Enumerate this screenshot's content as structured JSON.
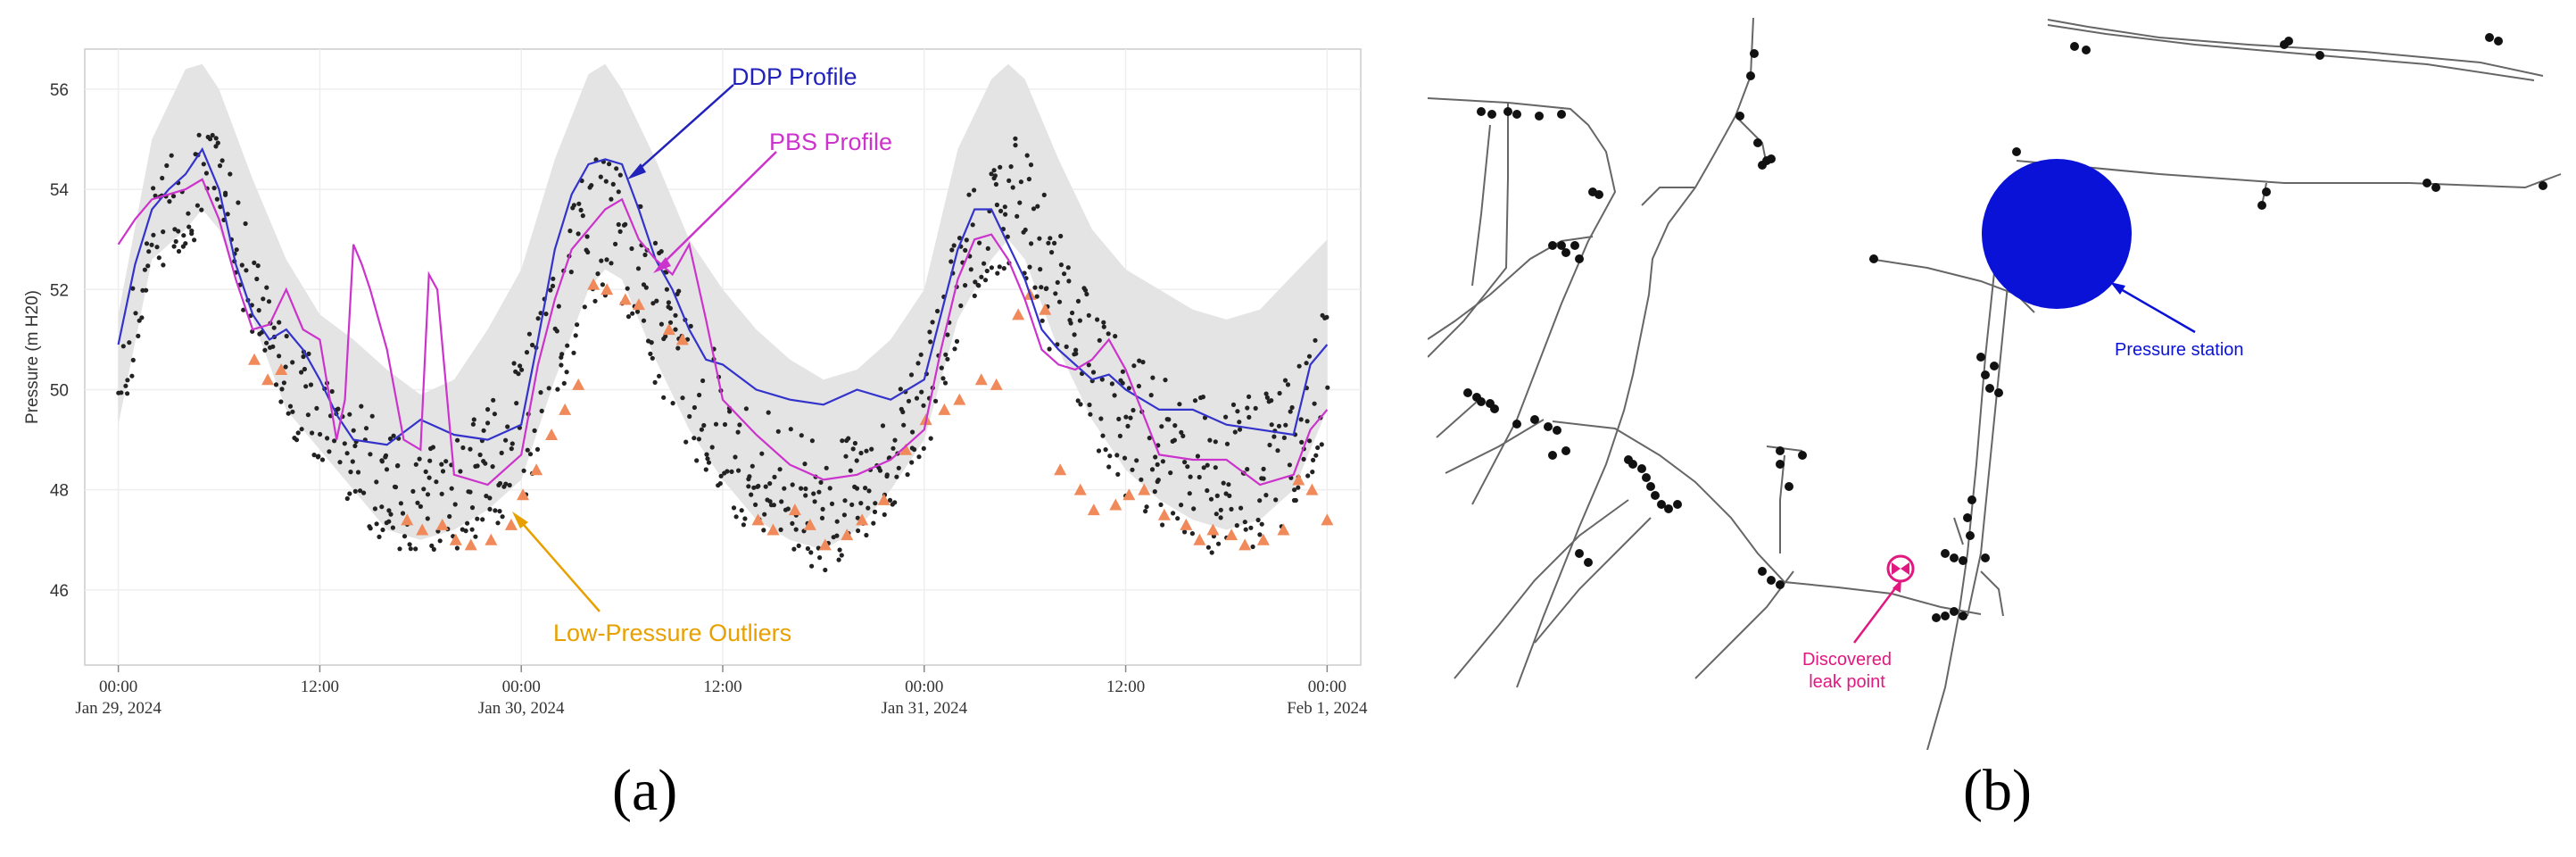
{
  "panel_labels": {
    "a": "(a)",
    "b": "(b)"
  },
  "chart_data": {
    "type": "line",
    "title": "",
    "ylabel": "Pressure (m H20)",
    "ylim": [
      44.5,
      56.8
    ],
    "yticks": [
      46,
      48,
      50,
      52,
      54,
      56
    ],
    "xlim": [
      -2,
      74
    ],
    "x_ticks": [
      {
        "hour": 0,
        "time": "00:00",
        "date": "Jan 29, 2024"
      },
      {
        "hour": 12,
        "time": "12:00",
        "date": ""
      },
      {
        "hour": 24,
        "time": "00:00",
        "date": "Jan 30, 2024"
      },
      {
        "hour": 36,
        "time": "12:00",
        "date": ""
      },
      {
        "hour": 48,
        "time": "00:00",
        "date": "Jan 31, 2024"
      },
      {
        "hour": 60,
        "time": "12:00",
        "date": ""
      },
      {
        "hour": 72,
        "time": "00:00",
        "date": "Feb 1, 2024"
      }
    ],
    "grid": true,
    "band": {
      "x": [
        0,
        2,
        4,
        5,
        6,
        8,
        10,
        12,
        14,
        16,
        18,
        20,
        22,
        24,
        26,
        28,
        29,
        30,
        32,
        34,
        36,
        38,
        40,
        42,
        44,
        46,
        48,
        50,
        52,
        53,
        54,
        56,
        58,
        60,
        62,
        64,
        66,
        68,
        70,
        72
      ],
      "upper": [
        51.5,
        55.0,
        56.4,
        56.5,
        56.0,
        54.2,
        52.6,
        51.5,
        51.0,
        50.4,
        49.9,
        50.2,
        51.2,
        52.4,
        54.6,
        56.3,
        56.5,
        56.0,
        54.6,
        53.0,
        52.0,
        51.2,
        50.6,
        50.2,
        50.4,
        51.0,
        52.0,
        54.8,
        56.2,
        56.5,
        56.2,
        54.6,
        53.2,
        52.4,
        52.0,
        51.6,
        51.4,
        51.6,
        52.3,
        53.0
      ],
      "lower": [
        49.3,
        52.6,
        53.2,
        53.6,
        53.2,
        51.4,
        49.6,
        48.8,
        48.0,
        47.2,
        47.0,
        47.2,
        47.6,
        48.2,
        50.2,
        52.0,
        52.4,
        52.2,
        50.6,
        49.2,
        48.2,
        47.4,
        47.0,
        46.8,
        47.2,
        48.0,
        49.0,
        51.4,
        52.6,
        53.0,
        52.6,
        50.8,
        49.4,
        48.4,
        47.8,
        47.4,
        47.2,
        47.4,
        48.0,
        49.6
      ]
    },
    "series": [
      {
        "id": "ddp",
        "color": "#3333cc",
        "x": [
          0,
          1,
          2,
          3,
          4,
          5,
          6,
          7,
          8,
          9,
          10,
          11,
          12,
          13,
          14,
          16,
          18,
          20,
          22,
          24,
          25,
          26,
          27,
          28,
          29,
          30,
          31,
          32,
          33,
          34,
          35,
          36,
          38,
          40,
          42,
          44,
          46,
          48,
          49,
          50,
          51,
          52,
          53,
          54,
          55,
          56,
          57,
          58,
          59,
          60,
          62,
          64,
          66,
          68,
          70,
          71,
          72
        ],
        "y": [
          50.9,
          52.5,
          53.6,
          54.0,
          54.3,
          54.8,
          54.0,
          52.5,
          51.5,
          51.0,
          51.2,
          50.8,
          50.2,
          49.5,
          49.0,
          48.9,
          49.4,
          49.1,
          49.0,
          49.3,
          51.0,
          52.8,
          53.9,
          54.5,
          54.6,
          54.5,
          53.6,
          52.6,
          52.0,
          51.2,
          50.6,
          50.5,
          50.0,
          49.8,
          49.7,
          50.0,
          49.8,
          50.2,
          51.5,
          52.8,
          53.6,
          53.6,
          52.9,
          52.2,
          51.2,
          50.8,
          50.5,
          50.2,
          50.3,
          50.0,
          49.6,
          49.6,
          49.3,
          49.2,
          49.1,
          50.5,
          50.9
        ]
      },
      {
        "id": "pbs",
        "color": "#cc33cc",
        "x": [
          0,
          1,
          2,
          3,
          4,
          5,
          6,
          7,
          8,
          9,
          10,
          11,
          12,
          13,
          13.5,
          14,
          14.5,
          15,
          16,
          17,
          18,
          18.5,
          19,
          20,
          22,
          24,
          25,
          26,
          27,
          28,
          29,
          30,
          31,
          32,
          33,
          34,
          35,
          36,
          38,
          40,
          42,
          44,
          46,
          48,
          49,
          50,
          51,
          52,
          53,
          54,
          55,
          56,
          57,
          58,
          59,
          60,
          62,
          64,
          66,
          68,
          70,
          71,
          72
        ],
        "y": [
          52.9,
          53.4,
          53.8,
          53.9,
          54.0,
          54.2,
          53.4,
          52.2,
          51.2,
          51.3,
          52.0,
          51.2,
          51.0,
          49.0,
          49.8,
          52.9,
          52.5,
          52.0,
          50.8,
          49.0,
          48.8,
          52.3,
          52.0,
          48.3,
          48.1,
          48.7,
          50.5,
          51.8,
          52.8,
          53.2,
          53.6,
          53.8,
          53.0,
          52.6,
          52.3,
          52.9,
          51.4,
          49.8,
          49.1,
          48.5,
          48.2,
          48.3,
          48.6,
          49.2,
          50.8,
          52.2,
          53.0,
          53.1,
          52.6,
          51.8,
          50.8,
          50.5,
          50.4,
          50.6,
          51.0,
          50.4,
          48.7,
          48.6,
          48.6,
          48.1,
          48.3,
          49.2,
          49.6
        ]
      }
    ],
    "outliers_color": "#f08a5a",
    "outliers": {
      "x": [
        8.1,
        8.9,
        9.7,
        17.2,
        18.1,
        19.3,
        20.1,
        21.0,
        22.2,
        23.4,
        24.1,
        24.9,
        25.8,
        26.6,
        27.4,
        28.3,
        29.1,
        30.2,
        31.0,
        32.8,
        33.6,
        38.1,
        39.0,
        40.3,
        41.2,
        42.1,
        43.4,
        44.3,
        45.6,
        46.9,
        48.1,
        49.2,
        50.1,
        51.4,
        52.3,
        53.6,
        54.3,
        55.2,
        56.1,
        57.3,
        58.1,
        59.4,
        60.2,
        61.1,
        62.3,
        63.6,
        64.4,
        65.2,
        66.3,
        67.1,
        68.2,
        69.4,
        70.3,
        71.1,
        72.0
      ],
      "y": [
        50.6,
        50.2,
        50.4,
        47.4,
        47.2,
        47.3,
        47.0,
        46.9,
        47.0,
        47.3,
        47.9,
        48.4,
        49.1,
        49.6,
        50.1,
        52.1,
        52.0,
        51.8,
        51.7,
        51.2,
        51.0,
        47.4,
        47.2,
        47.6,
        47.3,
        46.9,
        47.1,
        47.4,
        47.8,
        48.8,
        49.4,
        49.6,
        49.8,
        50.2,
        50.1,
        51.5,
        51.9,
        51.6,
        48.4,
        48.0,
        47.6,
        47.7,
        47.9,
        48.0,
        47.5,
        47.3,
        47.0,
        47.2,
        47.1,
        46.9,
        47.0,
        47.2,
        48.2,
        48.0,
        47.4
      ]
    }
  },
  "annotations": {
    "ddp": {
      "text": "DDP Profile",
      "color": "#2222bb"
    },
    "pbs": {
      "text": "PBS Profile",
      "color": "#cc33cc"
    },
    "outliers": {
      "text": "Low-Pressure Outliers",
      "color": "#e8a000"
    }
  },
  "map": {
    "pressure_station": {
      "text": "Pressure station",
      "color": "#0a12d8"
    },
    "leak": {
      "line1": "Discovered",
      "line2": "leak point",
      "color": "#e01880"
    }
  }
}
